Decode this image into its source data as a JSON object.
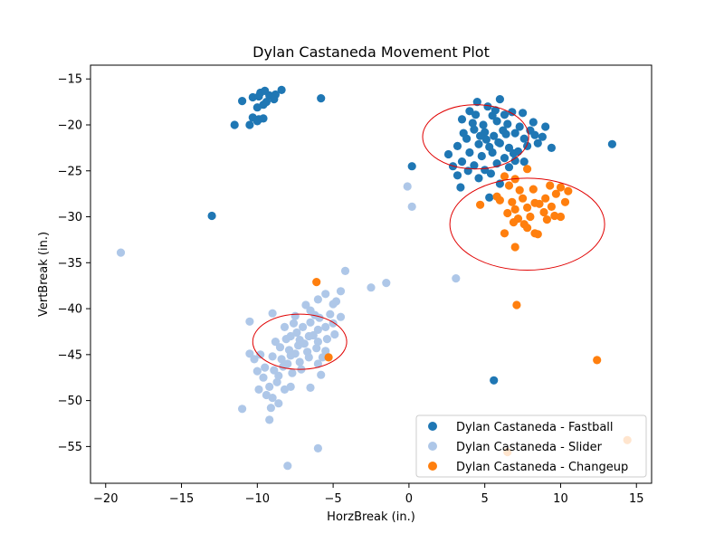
{
  "chart_data": {
    "type": "scatter",
    "title": "Dylan Castaneda Movement Plot",
    "xlabel": "HorzBreak (in.)",
    "ylabel": "VertBreak (in.)",
    "xlim": [
      -21,
      16
    ],
    "ylim": [
      -59,
      -13.5
    ],
    "xticks": [
      -20,
      -15,
      -10,
      -5,
      0,
      5,
      10,
      15
    ],
    "yticks": [
      -15,
      -20,
      -25,
      -30,
      -35,
      -40,
      -45,
      -50,
      -55
    ],
    "grid": false,
    "legend_position": "lower-right",
    "series": [
      {
        "name": "Dylan Castaneda - Fastball",
        "color": "#1f77b4",
        "points": [
          [
            -11,
            -17.4
          ],
          [
            -10.3,
            -17
          ],
          [
            -9.8,
            -16.5
          ],
          [
            -9.5,
            -16.3
          ],
          [
            -9.2,
            -16.8
          ],
          [
            -8.9,
            -17.2
          ],
          [
            -8.4,
            -16.2
          ],
          [
            -9.6,
            -17.8
          ],
          [
            -10.0,
            -18.1
          ],
          [
            -9.4,
            -17.5
          ],
          [
            -8.8,
            -16.7
          ],
          [
            -9.9,
            -16.9
          ],
          [
            -11.5,
            -20.0
          ],
          [
            -10.5,
            -20.0
          ],
          [
            -10.3,
            -19.2
          ],
          [
            -9.9,
            -19.4
          ],
          [
            -9.6,
            -19.3
          ],
          [
            -10.0,
            -19.6
          ],
          [
            -5.8,
            -17.1
          ],
          [
            -13.0,
            -29.9
          ],
          [
            0.2,
            -24.5
          ],
          [
            13.4,
            -22.1
          ],
          [
            9.4,
            -22.5
          ],
          [
            6.0,
            -26.4
          ],
          [
            5.3,
            -27.9
          ],
          [
            5.6,
            -47.8
          ],
          [
            3.5,
            -19.4
          ],
          [
            4.0,
            -18.5
          ],
          [
            4.5,
            -17.5
          ],
          [
            5.2,
            -18.0
          ],
          [
            5.5,
            -19.0
          ],
          [
            6.0,
            -17.2
          ],
          [
            6.8,
            -18.6
          ],
          [
            7.5,
            -18.7
          ],
          [
            8.2,
            -19.7
          ],
          [
            9.0,
            -20.2
          ],
          [
            4.3,
            -20.5
          ],
          [
            5.0,
            -20.8
          ],
          [
            5.6,
            -21.2
          ],
          [
            6.2,
            -20.6
          ],
          [
            7.0,
            -20.9
          ],
          [
            7.6,
            -21.5
          ],
          [
            8.5,
            -22.0
          ],
          [
            3.8,
            -21.5
          ],
          [
            4.6,
            -22.1
          ],
          [
            5.3,
            -22.4
          ],
          [
            6.0,
            -22.0
          ],
          [
            6.6,
            -22.5
          ],
          [
            7.2,
            -22.9
          ],
          [
            3.2,
            -22.3
          ],
          [
            4.0,
            -23.0
          ],
          [
            4.8,
            -23.4
          ],
          [
            5.5,
            -23.0
          ],
          [
            6.3,
            -23.6
          ],
          [
            7.0,
            -23.9
          ],
          [
            2.6,
            -23.2
          ],
          [
            3.5,
            -24.0
          ],
          [
            4.3,
            -24.4
          ],
          [
            5.0,
            -24.9
          ],
          [
            5.8,
            -24.2
          ],
          [
            6.6,
            -24.6
          ],
          [
            2.9,
            -24.5
          ],
          [
            3.2,
            -25.5
          ],
          [
            3.9,
            -25.0
          ],
          [
            4.6,
            -25.8
          ],
          [
            3.4,
            -26.8
          ],
          [
            4.9,
            -20.0
          ],
          [
            5.8,
            -19.6
          ],
          [
            6.5,
            -19.9
          ],
          [
            7.3,
            -20.2
          ],
          [
            4.2,
            -19.8
          ],
          [
            3.6,
            -20.9
          ],
          [
            8.0,
            -20.6
          ],
          [
            8.8,
            -21.3
          ],
          [
            7.8,
            -22.3
          ],
          [
            5.1,
            -21.6
          ],
          [
            5.9,
            -21.9
          ],
          [
            6.4,
            -21.0
          ],
          [
            4.7,
            -21.2
          ],
          [
            6.9,
            -23.1
          ],
          [
            5.4,
            -25.3
          ],
          [
            7.6,
            -24.0
          ],
          [
            8.3,
            -21.1
          ],
          [
            4.4,
            -18.9
          ],
          [
            5.7,
            -18.4
          ],
          [
            6.3,
            -18.9
          ]
        ]
      },
      {
        "name": "Dylan Castaneda - Slider",
        "color": "#aec7e8",
        "points": [
          [
            -19.0,
            -33.9
          ],
          [
            -0.1,
            -26.7
          ],
          [
            0.2,
            -28.9
          ],
          [
            -4.2,
            -35.9
          ],
          [
            -2.5,
            -37.7
          ],
          [
            -1.5,
            -37.2
          ],
          [
            3.1,
            -36.7
          ],
          [
            -6.0,
            -55.2
          ],
          [
            -8.0,
            -57.1
          ],
          [
            -11.0,
            -50.9
          ],
          [
            -10.5,
            -41.4
          ],
          [
            -9.0,
            -40.5
          ],
          [
            -7.5,
            -40.8
          ],
          [
            -6.5,
            -40.2
          ],
          [
            -6.0,
            -39.0
          ],
          [
            -5.5,
            -38.4
          ],
          [
            -5.0,
            -39.5
          ],
          [
            -4.5,
            -38.1
          ],
          [
            -4.8,
            -39.2
          ],
          [
            -4.5,
            -40.9
          ],
          [
            -8.2,
            -42.0
          ],
          [
            -7.6,
            -41.6
          ],
          [
            -7.0,
            -42.0
          ],
          [
            -6.5,
            -41.5
          ],
          [
            -6.0,
            -42.3
          ],
          [
            -5.5,
            -42.0
          ],
          [
            -5.0,
            -41.6
          ],
          [
            -7.8,
            -43.0
          ],
          [
            -7.2,
            -43.4
          ],
          [
            -6.6,
            -43.0
          ],
          [
            -6.0,
            -43.6
          ],
          [
            -5.4,
            -43.3
          ],
          [
            -4.9,
            -42.8
          ],
          [
            -8.5,
            -44.2
          ],
          [
            -7.9,
            -44.5
          ],
          [
            -7.3,
            -44.0
          ],
          [
            -6.7,
            -44.7
          ],
          [
            -6.1,
            -44.3
          ],
          [
            -5.5,
            -44.6
          ],
          [
            -9.0,
            -45.2
          ],
          [
            -8.4,
            -45.5
          ],
          [
            -7.8,
            -45.1
          ],
          [
            -7.2,
            -45.8
          ],
          [
            -6.6,
            -45.3
          ],
          [
            -6.0,
            -46.0
          ],
          [
            -9.5,
            -46.4
          ],
          [
            -8.9,
            -46.7
          ],
          [
            -8.3,
            -46.3
          ],
          [
            -7.7,
            -47.0
          ],
          [
            -7.1,
            -46.6
          ],
          [
            -9.8,
            -45.0
          ],
          [
            -10.2,
            -45.5
          ],
          [
            -10.0,
            -46.8
          ],
          [
            -9.6,
            -47.5
          ],
          [
            -9.2,
            -48.5
          ],
          [
            -8.7,
            -48.0
          ],
          [
            -8.2,
            -48.8
          ],
          [
            -7.8,
            -48.5
          ],
          [
            -9.9,
            -48.8
          ],
          [
            -9.4,
            -49.4
          ],
          [
            -9.0,
            -49.7
          ],
          [
            -8.6,
            -50.3
          ],
          [
            -9.1,
            -50.8
          ],
          [
            -9.2,
            -52.1
          ],
          [
            -6.5,
            -48.6
          ],
          [
            -5.8,
            -47.2
          ],
          [
            -8.8,
            -43.6
          ],
          [
            -5.2,
            -40.6
          ],
          [
            -6.8,
            -39.6
          ],
          [
            -7.4,
            -42.6
          ],
          [
            -6.3,
            -42.9
          ],
          [
            -5.7,
            -45.3
          ],
          [
            -8.0,
            -46.0
          ],
          [
            -8.6,
            -47.3
          ],
          [
            -10.5,
            -44.9
          ],
          [
            -5.9,
            -41.0
          ],
          [
            -6.9,
            -43.8
          ],
          [
            -7.5,
            -44.9
          ],
          [
            -8.1,
            -43.3
          ],
          [
            -6.2,
            -40.7
          ]
        ]
      },
      {
        "name": "Dylan Castaneda - Changeup",
        "color": "#ff7f0e",
        "points": [
          [
            6.3,
            -25.6
          ],
          [
            7.0,
            -25.9
          ],
          [
            7.8,
            -24.8
          ],
          [
            6.6,
            -26.6
          ],
          [
            7.3,
            -27.1
          ],
          [
            8.2,
            -27.0
          ],
          [
            9.3,
            -26.6
          ],
          [
            10.0,
            -26.8
          ],
          [
            10.5,
            -27.2
          ],
          [
            9.7,
            -27.5
          ],
          [
            9.0,
            -28.0
          ],
          [
            8.3,
            -28.5
          ],
          [
            7.5,
            -28.0
          ],
          [
            6.8,
            -28.4
          ],
          [
            6.0,
            -28.2
          ],
          [
            5.8,
            -27.8
          ],
          [
            4.7,
            -28.7
          ],
          [
            7.0,
            -29.2
          ],
          [
            7.8,
            -29.0
          ],
          [
            8.6,
            -28.6
          ],
          [
            9.4,
            -28.9
          ],
          [
            10.3,
            -28.4
          ],
          [
            6.5,
            -29.6
          ],
          [
            7.2,
            -30.2
          ],
          [
            8.0,
            -30.0
          ],
          [
            8.9,
            -29.5
          ],
          [
            9.6,
            -29.9
          ],
          [
            6.9,
            -30.6
          ],
          [
            7.6,
            -30.8
          ],
          [
            9.1,
            -30.3
          ],
          [
            10.0,
            -30.0
          ],
          [
            7.8,
            -31.2
          ],
          [
            6.3,
            -31.8
          ],
          [
            8.5,
            -31.9
          ],
          [
            8.3,
            -31.8
          ],
          [
            7.0,
            -33.3
          ],
          [
            7.1,
            -39.6
          ],
          [
            -6.1,
            -37.1
          ],
          [
            -5.3,
            -45.3
          ],
          [
            12.4,
            -45.6
          ],
          [
            14.4,
            -54.3
          ],
          [
            6.5,
            -55.6
          ]
        ]
      }
    ],
    "ellipses": [
      {
        "cx": 4.4,
        "cy": -21.3,
        "rx": 3.5,
        "ry": 3.5,
        "color": "#e00000"
      },
      {
        "cx": 7.8,
        "cy": -30.8,
        "rx": 5.1,
        "ry": 5.0,
        "color": "#e00000"
      },
      {
        "cx": -7.2,
        "cy": -43.6,
        "rx": 3.1,
        "ry": 3.0,
        "color": "#e00000"
      }
    ]
  }
}
